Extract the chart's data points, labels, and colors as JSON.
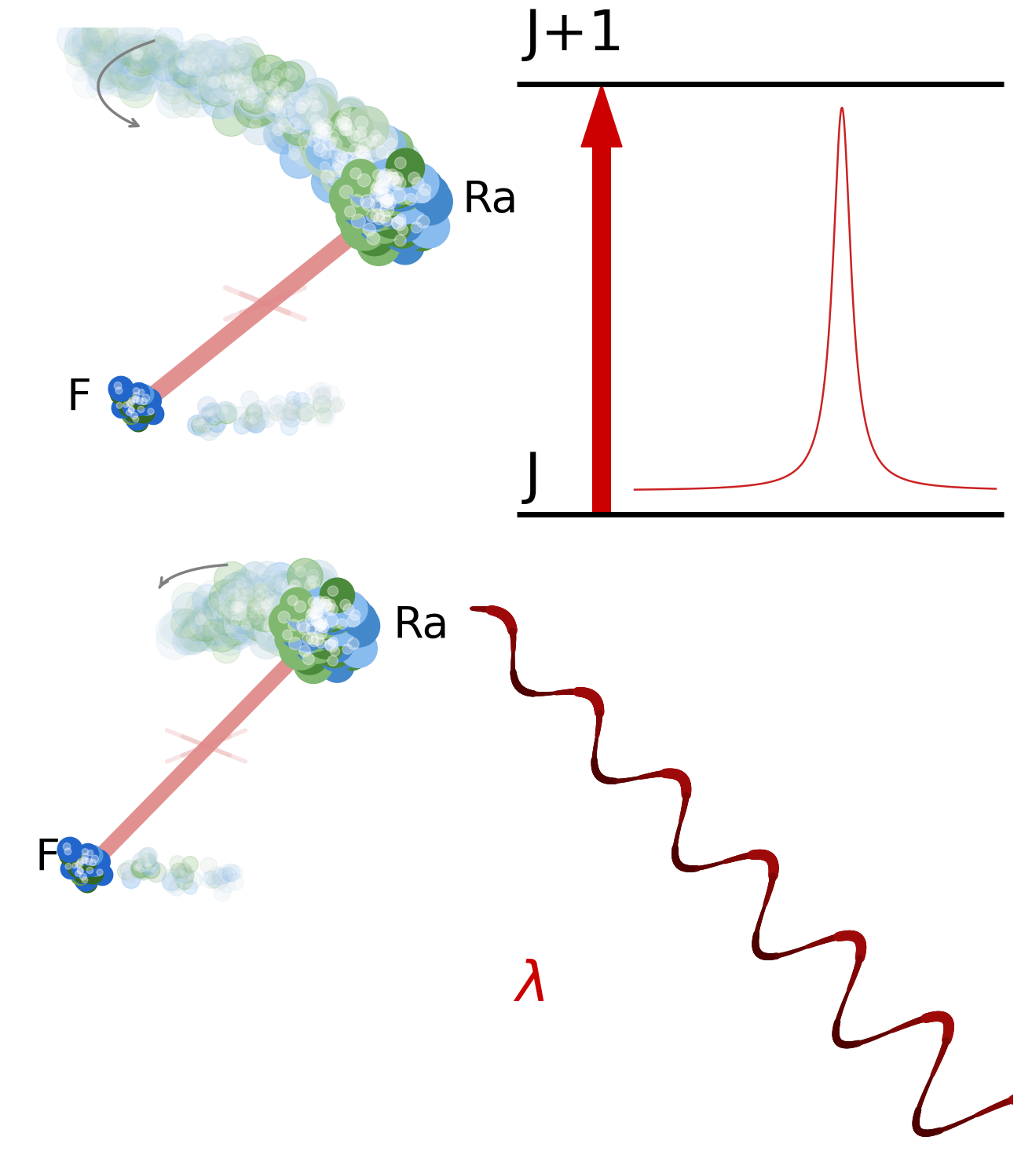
{
  "bg_color": "#ffffff",
  "arrow_color": "#cc0000",
  "level_line_color": "#000000",
  "peak_color": "#cc3333",
  "helix_dark": "#7a0000",
  "helix_mid": "#b01010",
  "label_J": "J",
  "label_J1": "J+1",
  "label_Ra": "Ra",
  "label_F": "F",
  "label_lambda": "λ",
  "gray_arrow_color": "#808080",
  "ra_blue": "#4488cc",
  "ra_green": "#4a8a3a",
  "ra_blue_light": "#88bbee",
  "ra_green_light": "#80b870",
  "ra_white": "#c8dde8",
  "f_blue": "#2266cc",
  "f_green": "#336622",
  "f_blue_light": "#5599dd",
  "f_green_light": "#669944",
  "beam_color": "#e08888",
  "beam_alpha": 0.85
}
